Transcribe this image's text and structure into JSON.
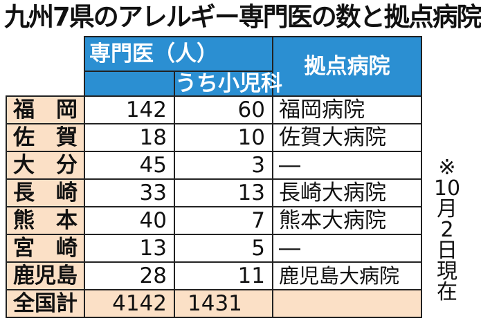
{
  "title": "九州7県のアレルギー専門医の数と拠点病院",
  "header": {
    "specialists": "専門医（人）",
    "pediatrics": "うち小児科",
    "base_hospital": "拠点病院"
  },
  "rows": [
    {
      "pref": "福　岡",
      "specialists": "142",
      "pediatrics": "60",
      "hospital": "福岡病院"
    },
    {
      "pref": "佐　賀",
      "specialists": "18",
      "pediatrics": "10",
      "hospital": "佐賀大病院"
    },
    {
      "pref": "大　分",
      "specialists": "45",
      "pediatrics": "3",
      "hospital": "―"
    },
    {
      "pref": "長　崎",
      "specialists": "33",
      "pediatrics": "13",
      "hospital": "長崎大病院"
    },
    {
      "pref": "熊　本",
      "specialists": "40",
      "pediatrics": "7",
      "hospital": "熊本大病院"
    },
    {
      "pref": "宮　崎",
      "specialists": "13",
      "pediatrics": "5",
      "hospital": "―"
    },
    {
      "pref": "鹿児島",
      "specialists": "28",
      "pediatrics": "11",
      "hospital": "鹿児島大病院"
    }
  ],
  "total": {
    "label": "全国計",
    "specialists": "4142",
    "pediatrics": "1431",
    "hospital": ""
  },
  "note": [
    "※",
    "10",
    "月",
    "2",
    "日",
    "現",
    "在"
  ]
}
